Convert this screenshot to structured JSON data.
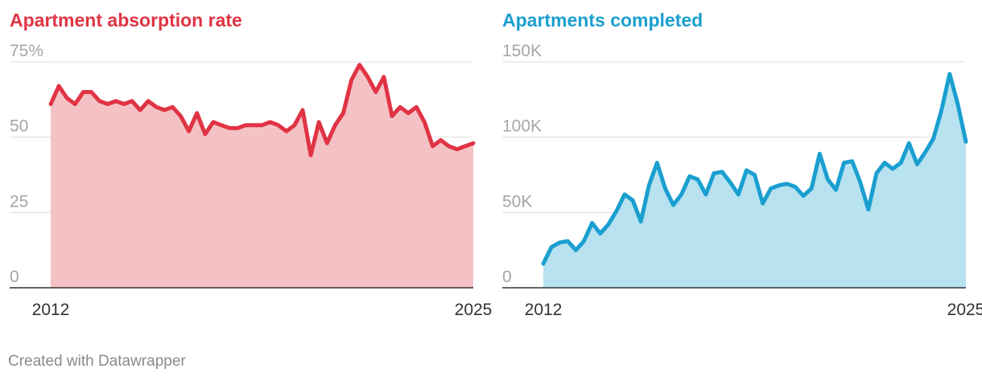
{
  "footer": {
    "credit": "Created with Datawrapper"
  },
  "chart_data": [
    {
      "type": "area",
      "title": "Apartment absorption rate",
      "color": "#e03444",
      "fill_color": "#f4c2c5",
      "ylim": [
        0,
        75
      ],
      "yticks": [
        0,
        25,
        50,
        75
      ],
      "ytick_labels": [
        "0",
        "25",
        "50",
        "75%"
      ],
      "xlim": [
        2012,
        2025
      ],
      "xticks": [
        2012,
        2025
      ],
      "xtick_labels": [
        "2012",
        "2025"
      ],
      "grid": true,
      "x": [
        2012.0,
        2012.25,
        2012.5,
        2012.75,
        2013.0,
        2013.25,
        2013.5,
        2013.75,
        2014.0,
        2014.25,
        2014.5,
        2014.75,
        2015.0,
        2015.25,
        2015.5,
        2015.75,
        2016.0,
        2016.25,
        2016.5,
        2016.75,
        2017.0,
        2017.25,
        2017.5,
        2017.75,
        2018.0,
        2018.25,
        2018.5,
        2018.75,
        2019.0,
        2019.25,
        2019.5,
        2019.75,
        2020.0,
        2020.25,
        2020.5,
        2020.75,
        2021.0,
        2021.25,
        2021.5,
        2021.75,
        2022.0,
        2022.25,
        2022.5,
        2022.75,
        2023.0,
        2023.25,
        2023.5,
        2023.75,
        2024.0,
        2024.25,
        2024.5,
        2024.75,
        2025.0
      ],
      "values": [
        61,
        67,
        63,
        61,
        65,
        65,
        62,
        61,
        62,
        61,
        62,
        59,
        62,
        60,
        59,
        60,
        57,
        52,
        58,
        51,
        55,
        54,
        53,
        53,
        54,
        54,
        54,
        55,
        54,
        52,
        54,
        59,
        44,
        55,
        48,
        54,
        58,
        69,
        74,
        70,
        65,
        70,
        57,
        60,
        58,
        60,
        55,
        47,
        49,
        47,
        46,
        47,
        48
      ]
    },
    {
      "type": "area",
      "title": "Apartments completed",
      "color": "#1a9fd0",
      "fill_color": "#b8e2f0",
      "ylim": [
        0,
        150000
      ],
      "yticks": [
        0,
        50000,
        100000,
        150000
      ],
      "ytick_labels": [
        "0",
        "50K",
        "100K",
        "150K"
      ],
      "xlim": [
        2012,
        2025
      ],
      "xticks": [
        2012,
        2025
      ],
      "xtick_labels": [
        "2012",
        "2025"
      ],
      "grid": true,
      "x": [
        2012.0,
        2012.25,
        2012.5,
        2012.75,
        2013.0,
        2013.25,
        2013.5,
        2013.75,
        2014.0,
        2014.25,
        2014.5,
        2014.75,
        2015.0,
        2015.25,
        2015.5,
        2015.75,
        2016.0,
        2016.25,
        2016.5,
        2016.75,
        2017.0,
        2017.25,
        2017.5,
        2017.75,
        2018.0,
        2018.25,
        2018.5,
        2018.75,
        2019.0,
        2019.25,
        2019.5,
        2019.75,
        2020.0,
        2020.25,
        2020.5,
        2020.75,
        2021.0,
        2021.25,
        2021.5,
        2021.75,
        2022.0,
        2022.25,
        2022.5,
        2022.75,
        2023.0,
        2023.25,
        2023.5,
        2023.75,
        2024.0,
        2024.25,
        2024.5,
        2024.75,
        2025.0
      ],
      "values": [
        16000,
        27000,
        30000,
        31000,
        25000,
        31000,
        43000,
        36000,
        42000,
        51000,
        62000,
        58000,
        44000,
        68000,
        83000,
        66000,
        55000,
        62000,
        74000,
        72000,
        62000,
        76000,
        77000,
        70000,
        62000,
        78000,
        75000,
        56000,
        66000,
        68000,
        69000,
        67000,
        61000,
        66000,
        89000,
        72000,
        65000,
        83000,
        84000,
        70000,
        52000,
        76000,
        83000,
        79000,
        83000,
        96000,
        82000,
        90000,
        99000,
        118000,
        142000,
        122000,
        97000
      ]
    }
  ]
}
